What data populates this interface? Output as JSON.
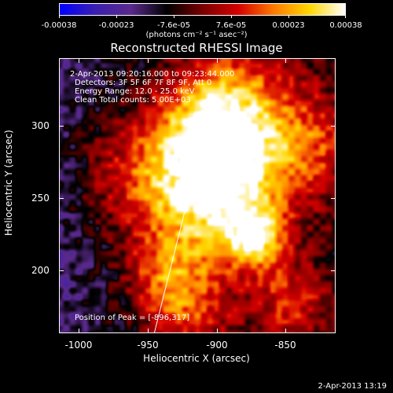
{
  "colorbar": {
    "tick_labels": [
      "-0.00038",
      "-0.00023",
      "-7.6e-05",
      "7.6e-05",
      "0.00023",
      "0.00038"
    ],
    "units_label": "(photons cm⁻² s⁻¹ asec⁻²)",
    "colormap": [
      "#0000ff",
      "#3b1fb0",
      "#5a2a8c",
      "#000000",
      "#7a0000",
      "#d40000",
      "#ff7a00",
      "#ffd700",
      "#ffffff"
    ]
  },
  "title": "Reconstructed RHESSI Image",
  "info": {
    "time_range": "2-Apr-2013 09:20:16.000 to 09:23:44.000",
    "detectors": "Detectors: 3F 5F 6F 7F 8F 9F, Att 0",
    "energy_range": "Energy Range: 12.0 - 25.0 keV",
    "algorithm": "Clean    Total counts: 5.00E+03",
    "peak": "Position of Peak = [-896,317]"
  },
  "axes": {
    "xlabel": "Heliocentric X (arcsec)",
    "ylabel": "Heliocentric Y (arcsec)",
    "xticks": [
      "-1000",
      "-950",
      "-900",
      "-850"
    ],
    "yticks": [
      "300",
      "250",
      "200"
    ]
  },
  "timestamp": "2-Apr-2013 13:19",
  "chart_data": {
    "type": "heatmap",
    "title": "Reconstructed RHESSI Image",
    "xlabel": "Heliocentric X (arcsec)",
    "ylabel": "Heliocentric Y (arcsec)",
    "xlim": [
      -1010,
      -820
    ],
    "ylim": [
      155,
      340
    ],
    "xticks": [
      -1000,
      -950,
      -900,
      -850
    ],
    "yticks": [
      200,
      250,
      300
    ],
    "color_range": [
      -0.00038,
      0.00038
    ],
    "peak_position": [
      -896,
      317
    ]
  }
}
